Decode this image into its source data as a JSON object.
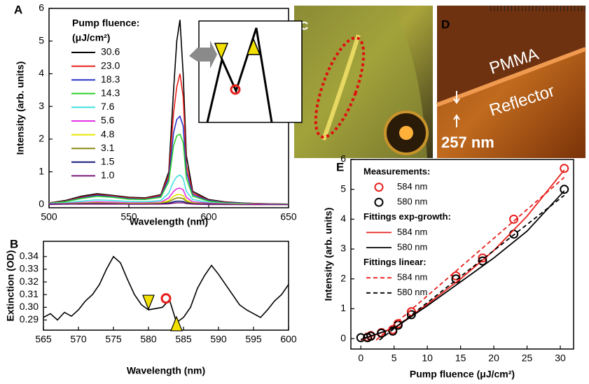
{
  "chart_data": [
    {
      "type": "line",
      "label": "A",
      "xlabel": "Wavelength (nm)",
      "ylabel": "Intensity (arb. units)",
      "xlim": [
        500,
        650
      ],
      "ylim": [
        -0.1,
        6
      ],
      "xticks": [
        500,
        550,
        600,
        650
      ],
      "yticks": [
        0,
        1,
        2,
        3,
        4,
        5,
        6
      ],
      "legend_title": [
        "Pump fluence:",
        "(μJ/cm²)"
      ],
      "x": [
        500,
        510,
        520,
        530,
        540,
        550,
        560,
        570,
        575,
        578,
        580,
        582,
        584,
        586,
        590,
        600,
        610,
        620,
        630,
        640,
        650
      ],
      "series": [
        {
          "name": "30.6",
          "color": "#000000",
          "values": [
            0.05,
            0.12,
            0.25,
            0.33,
            0.28,
            0.22,
            0.2,
            0.3,
            1.0,
            3.5,
            5.0,
            5.65,
            4.0,
            1.5,
            0.4,
            0.15,
            0.08,
            0.05,
            0.03,
            0.02,
            0.01
          ]
        },
        {
          "name": "23.0",
          "color": "#e8201c",
          "values": [
            0.05,
            0.1,
            0.22,
            0.3,
            0.26,
            0.2,
            0.18,
            0.28,
            0.9,
            2.8,
            3.6,
            4.0,
            3.3,
            1.2,
            0.35,
            0.13,
            0.07,
            0.04,
            0.03,
            0.02,
            0.01
          ]
        },
        {
          "name": "18.3",
          "color": "#2a35c8",
          "values": [
            0.04,
            0.09,
            0.2,
            0.28,
            0.24,
            0.18,
            0.16,
            0.25,
            0.8,
            2.2,
            2.6,
            2.7,
            2.4,
            1.0,
            0.3,
            0.12,
            0.06,
            0.04,
            0.02,
            0.01,
            0.01
          ]
        },
        {
          "name": "14.3",
          "color": "#2ed12e",
          "values": [
            0.04,
            0.08,
            0.18,
            0.25,
            0.22,
            0.16,
            0.15,
            0.22,
            0.7,
            1.8,
            2.1,
            2.15,
            1.9,
            0.8,
            0.25,
            0.1,
            0.05,
            0.03,
            0.02,
            0.01,
            0.01
          ]
        },
        {
          "name": "7.6",
          "color": "#3ee0e0",
          "values": [
            0.03,
            0.05,
            0.1,
            0.14,
            0.12,
            0.09,
            0.08,
            0.12,
            0.35,
            0.7,
            0.85,
            0.9,
            0.8,
            0.4,
            0.15,
            0.06,
            0.03,
            0.02,
            0.01,
            0.01,
            0
          ]
        },
        {
          "name": "5.6",
          "color": "#e22ee2",
          "values": [
            0.02,
            0.03,
            0.06,
            0.08,
            0.07,
            0.05,
            0.05,
            0.07,
            0.2,
            0.4,
            0.48,
            0.5,
            0.45,
            0.22,
            0.08,
            0.04,
            0.02,
            0.01,
            0.01,
            0,
            0
          ]
        },
        {
          "name": "4.8",
          "color": "#e6e600",
          "values": [
            0.01,
            0.02,
            0.04,
            0.05,
            0.04,
            0.03,
            0.03,
            0.05,
            0.12,
            0.25,
            0.3,
            0.3,
            0.27,
            0.13,
            0.05,
            0.02,
            0.01,
            0.01,
            0,
            0,
            0
          ]
        },
        {
          "name": "3.1",
          "color": "#8a8a10",
          "values": [
            0.01,
            0.02,
            0.03,
            0.04,
            0.03,
            0.02,
            0.02,
            0.03,
            0.08,
            0.16,
            0.2,
            0.2,
            0.18,
            0.09,
            0.03,
            0.02,
            0.01,
            0,
            0,
            0,
            0
          ]
        },
        {
          "name": "1.5",
          "color": "#14187a",
          "values": [
            0.01,
            0.01,
            0.02,
            0.02,
            0.02,
            0.01,
            0.01,
            0.02,
            0.04,
            0.08,
            0.1,
            0.1,
            0.09,
            0.05,
            0.02,
            0.01,
            0,
            0,
            0,
            0,
            0
          ]
        },
        {
          "name": "1.0",
          "color": "#7a1a7a",
          "values": [
            0,
            0.01,
            0.01,
            0.01,
            0.01,
            0.01,
            0.01,
            0.01,
            0.02,
            0.04,
            0.05,
            0.05,
            0.05,
            0.03,
            0.01,
            0,
            0,
            0,
            0,
            0,
            0
          ]
        }
      ]
    },
    {
      "type": "line",
      "label": "B",
      "xlabel": "Wavelength (nm)",
      "ylabel": "Extinction (OD)",
      "xlim": [
        565,
        600
      ],
      "ylim": [
        0.282,
        0.352
      ],
      "xticks": [
        565,
        570,
        575,
        580,
        585,
        590,
        595,
        600
      ],
      "yticks": [
        0.29,
        {
          "value": 0.3,
          "label": "0.30"
        },
        0.31,
        0.32,
        0.33,
        0.34
      ],
      "x": [
        565,
        566,
        567,
        568,
        569,
        570,
        571,
        572,
        573,
        574,
        575,
        576,
        577,
        578,
        579,
        580,
        581,
        582,
        583,
        584,
        585,
        586,
        587,
        588,
        589,
        590,
        591,
        592,
        593,
        594,
        595,
        596,
        597,
        598,
        599,
        600
      ],
      "series": [
        {
          "color": "#000000",
          "values": [
            0.292,
            0.295,
            0.29,
            0.296,
            0.293,
            0.298,
            0.305,
            0.31,
            0.318,
            0.33,
            0.34,
            0.335,
            0.322,
            0.31,
            0.302,
            0.298,
            0.299,
            0.3,
            0.306,
            0.288,
            0.292,
            0.3,
            0.315,
            0.325,
            0.333,
            0.326,
            0.318,
            0.31,
            0.302,
            0.298,
            0.295,
            0.292,
            0.298,
            0.305,
            0.31,
            0.318
          ]
        }
      ],
      "markers": [
        {
          "shape": "triangle-down",
          "color": "#f2e000",
          "x": 580,
          "y": 0.304
        },
        {
          "shape": "circle",
          "color": "#e8201c",
          "x": 582.5,
          "y": 0.307
        },
        {
          "shape": "triangle-up",
          "color": "#f2e000",
          "x": 584,
          "y": 0.287
        }
      ]
    },
    {
      "type": "scatter",
      "label": "E",
      "xlabel": "Pump fluence (μJ/cm²)",
      "ylabel": "Intensity (arb. units)",
      "xlim": [
        -1.5,
        32
      ],
      "ylim": [
        -0.35,
        6
      ],
      "xticks": [
        0,
        5,
        10,
        15,
        20,
        25,
        30
      ],
      "yticks": [
        0,
        1,
        2,
        3,
        4,
        5,
        6
      ],
      "groups": [
        {
          "title": "Measurements:",
          "series": [
            {
              "name": "584 nm",
              "color": "#e8201c",
              "style": "circle",
              "x": [
                1.0,
                1.5,
                3.1,
                4.8,
                5.6,
                7.6,
                14.3,
                18.3,
                23.0,
                30.6
              ],
              "values": [
                0.05,
                0.1,
                0.2,
                0.3,
                0.5,
                0.9,
                2.1,
                2.7,
                4.0,
                5.7
              ]
            },
            {
              "name": "580 nm",
              "color": "#000000",
              "style": "circle",
              "x": [
                0,
                1.0,
                1.5,
                3.1,
                4.8,
                5.6,
                7.6,
                14.3,
                18.3,
                23.0,
                30.6
              ],
              "values": [
                0.03,
                0.03,
                0.08,
                0.18,
                0.25,
                0.45,
                0.8,
                2.0,
                2.6,
                3.5,
                5.0
              ]
            }
          ]
        },
        {
          "title": "Fittings exp-growth:",
          "series": [
            {
              "name": "584 nm",
              "color": "#e8201c",
              "style": "solid",
              "x": [
                0,
                5,
                10,
                15,
                20,
                25,
                30.6
              ],
              "values": [
                -0.05,
                0.35,
                1.15,
                2.0,
                2.95,
                4.1,
                5.65
              ]
            },
            {
              "name": "580 nm",
              "color": "#000000",
              "style": "solid",
              "x": [
                0,
                5,
                10,
                15,
                20,
                25,
                30.6
              ],
              "values": [
                -0.03,
                0.35,
                1.1,
                1.9,
                2.7,
                3.6,
                4.95
              ]
            }
          ]
        },
        {
          "title": "Fittings linear:",
          "series": [
            {
              "name": "584 nm",
              "color": "#e8201c",
              "style": "dashed",
              "x": [
                2.3,
                30.6
              ],
              "values": [
                -0.05,
                5.4
              ]
            },
            {
              "name": "580 nm",
              "color": "#000000",
              "style": "dashed",
              "x": [
                2.8,
                30.6
              ],
              "values": [
                -0.05,
                4.8
              ]
            }
          ]
        }
      ]
    }
  ],
  "images": [
    {
      "label": "C"
    },
    {
      "label": "D",
      "texts": [
        "PMMA",
        "Reflector",
        "257 nm"
      ]
    }
  ]
}
